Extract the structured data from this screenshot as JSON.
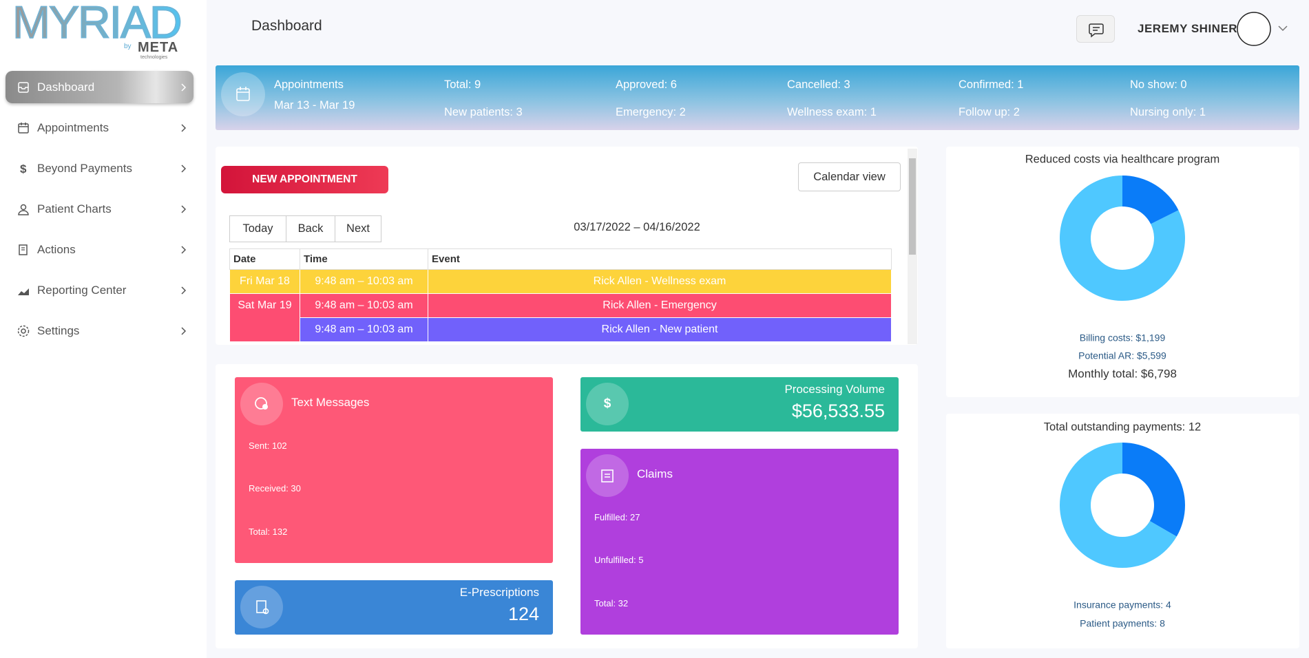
{
  "sidebar": {
    "logo": "MYRIAD",
    "logo_by": "by",
    "logo_brand": "META",
    "logo_tag": "technologies",
    "items": [
      "Dashboard",
      "Appointments",
      "Beyond Payments",
      "Patient Charts",
      "Actions",
      "Reporting Center",
      "Settings"
    ]
  },
  "header": {
    "title": "Dashboard",
    "user": "JEREMY SHINER"
  },
  "banner": {
    "title": "Appointments",
    "range": "Mar 13 - Mar 19",
    "stats": [
      [
        "Total: 9",
        "New patients: 3"
      ],
      [
        "Approved: 6",
        "Emergency: 2"
      ],
      [
        "Cancelled: 3",
        "Wellness exam: 1"
      ],
      [
        "Confirmed: 1",
        "Follow up: 2"
      ],
      [
        "No show: 0",
        "Nursing only: 1"
      ]
    ]
  },
  "calendar": {
    "new_button": "NEW APPOINTMENT",
    "view_button": "Calendar view",
    "nav": [
      "Today",
      "Back",
      "Next"
    ],
    "range": "03/17/2022 – 04/16/2022",
    "columns": [
      "Date",
      "Time",
      "Event"
    ],
    "dates": [
      "Fri Mar 18",
      "Sat Mar 19"
    ],
    "events": [
      {
        "time": "9:48 am – 10:03 am",
        "event": "Rick Allen - Wellness exam"
      },
      {
        "time": "9:48 am – 10:03 am",
        "event": "Rick Allen - Emergency"
      },
      {
        "time": "9:48 am – 10:03 am",
        "event": "Rick Allen - New patient"
      }
    ]
  },
  "cards": {
    "text_messages": {
      "title": "Text Messages",
      "lines": [
        "Sent: 102",
        "Received: 30",
        "Total: 132"
      ]
    },
    "processing_volume": {
      "title": "Processing Volume",
      "value": "$56,533.55"
    },
    "claims": {
      "title": "Claims",
      "lines": [
        "Fulfilled: 27",
        "Unfulfilled: 5",
        "Total: 32"
      ]
    },
    "e_prescriptions": {
      "title": "E-Prescriptions",
      "value": "124"
    }
  },
  "donuts": [
    {
      "title": "Reduced costs via healthcare program",
      "segments": [
        {
          "label": "Billing costs: $1,199",
          "value": 1199,
          "color": "#0a7cf8"
        },
        {
          "label": "Potential AR: $5,599",
          "value": 5599,
          "color": "#4fc8ff"
        }
      ],
      "total": "Monthly total: $6,798"
    },
    {
      "title": "Total outstanding payments: 12",
      "segments": [
        {
          "label": "Insurance payments: 4",
          "value": 4,
          "color": "#0a7cf8"
        },
        {
          "label": "Patient payments: 8",
          "value": 8,
          "color": "#4fc8ff"
        }
      ]
    }
  ]
}
